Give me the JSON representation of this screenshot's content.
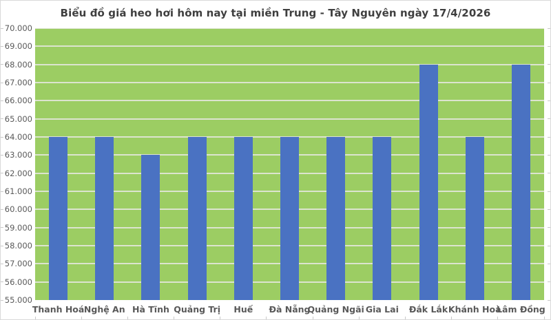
{
  "chart_data": {
    "type": "bar",
    "title": "Biểu đồ giá heo hơi hôm nay tại miền Trung - Tây Nguyên ngày 17/4/2026",
    "categories": [
      "Thanh Hoá",
      "Nghệ An",
      "Hà Tĩnh",
      "Quảng Trị",
      "Huế",
      "Đà Nẵng",
      "Quảng Ngãi",
      "Gia Lai",
      "Đắk Lắk",
      "Khánh Hoà",
      "Lâm Đồng"
    ],
    "values": [
      64000,
      64000,
      63000,
      64000,
      64000,
      64000,
      64000,
      64000,
      68000,
      64000,
      68000
    ],
    "xlabel": "",
    "ylabel": "",
    "ylim": [
      55000,
      70000
    ],
    "ytick_step": 1000,
    "ytick_labels": [
      "55.000",
      "56.000",
      "57.000",
      "58.000",
      "59.000",
      "60.000",
      "61.000",
      "62.000",
      "63.000",
      "64.000",
      "65.000",
      "66.000",
      "67.000",
      "68.000",
      "69.000",
      "70.000"
    ],
    "grid": "horizontal",
    "legend": "none",
    "colors": {
      "bar": "#4a72c2",
      "plot_bg": "#9ccd63",
      "gridline": "#dce4cf",
      "title_text": "#3f3f3f",
      "axis_text": "#595959",
      "chart_bg": "#ffffff",
      "border": "#d9d9d9",
      "tick": "#c9c9c9"
    }
  }
}
